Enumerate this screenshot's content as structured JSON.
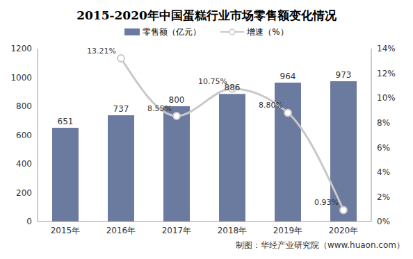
{
  "chart_data": {
    "type": "bar",
    "title": "2015-2020年中国蛋糕行业市场零售额变化情况",
    "categories": [
      "2015年",
      "2016年",
      "2017年",
      "2018年",
      "2019年",
      "2020年"
    ],
    "series": [
      {
        "name": "零售额（亿元）",
        "type": "bar",
        "color": "#6b7a9f",
        "values": [
          651,
          737,
          800,
          886,
          964,
          973
        ],
        "data_labels": true
      },
      {
        "name": "增速（%）",
        "type": "line",
        "axis": "y2",
        "color": "#c8c8c8",
        "marker": "circle",
        "line_style": "solid",
        "values": [
          null,
          13.21,
          8.55,
          10.75,
          8.8,
          0.93
        ],
        "value_labels": [
          null,
          "13.21%",
          "8.55%",
          "10.75%",
          "8.80%",
          "0.93%"
        ],
        "data_labels": true
      }
    ],
    "ylim": [
      0,
      1200
    ],
    "yticks": [
      0,
      200,
      400,
      600,
      800,
      1000,
      1200
    ],
    "y2lim": [
      0,
      14
    ],
    "y2ticks": [
      {
        "value": 0,
        "label": "0%"
      },
      {
        "value": 2,
        "label": "2%"
      },
      {
        "value": 4,
        "label": "4%"
      },
      {
        "value": 6,
        "label": "6%"
      },
      {
        "value": 8,
        "label": "8%"
      },
      {
        "value": 10,
        "label": "10%"
      },
      {
        "value": 12,
        "label": "12%"
      },
      {
        "value": 14,
        "label": "14%"
      }
    ],
    "legend": "top",
    "grid": false,
    "source": "制图：华经产业研究院（www.huaon.com）"
  }
}
